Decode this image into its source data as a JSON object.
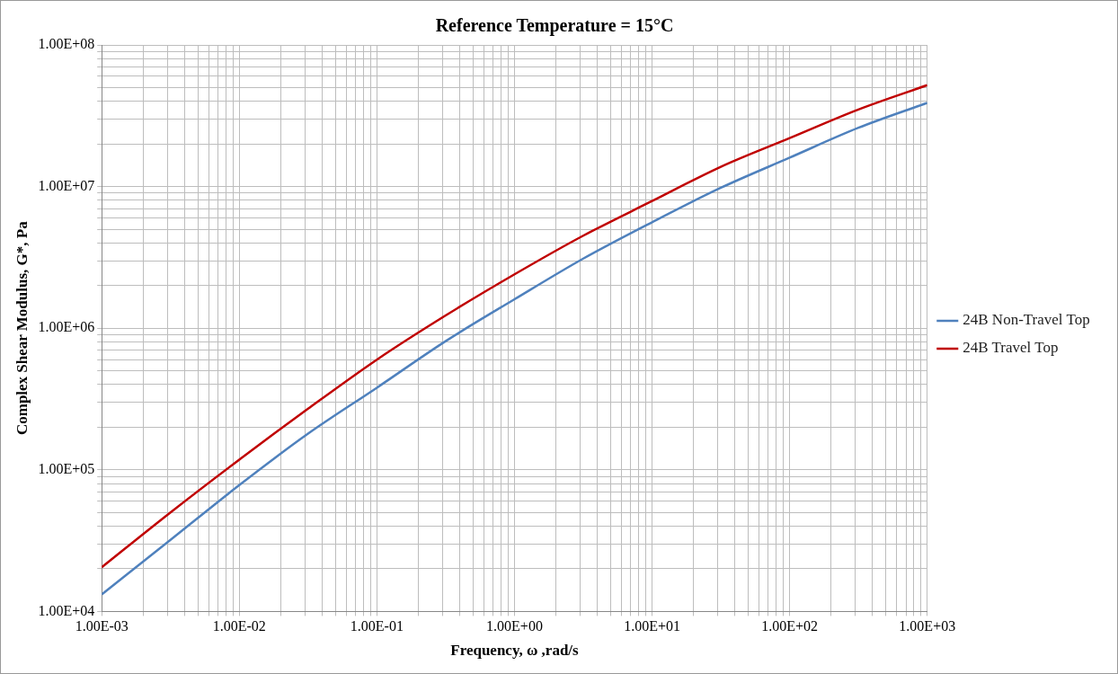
{
  "chart_data": {
    "type": "line",
    "title": "Reference Temperature = 15°C",
    "xlabel": "Frequency, ω ,rad/s",
    "ylabel": "Complex Shear Modulus, G*, Pa",
    "log": "xy",
    "grid": true,
    "legend": "right",
    "marker": "none",
    "line_style": "solid",
    "xlim": [
      0.001,
      1000
    ],
    "ylim": [
      10000,
      100000000
    ],
    "x": [
      0.001,
      0.00316,
      0.01,
      0.0316,
      0.1,
      0.316,
      1,
      3.16,
      10,
      31.6,
      100,
      316,
      1000
    ],
    "series": [
      {
        "name": "24B Non-Travel Top",
        "color": "#4f81bd",
        "values": [
          13200,
          32000,
          78000,
          180000,
          380000,
          810000,
          1600000,
          3100000,
          5600000,
          9800000,
          16000000,
          26000000,
          39000000
        ]
      },
      {
        "name": "24B Travel Top",
        "color": "#c00000",
        "values": [
          20500,
          50000,
          118000,
          270000,
          600000,
          1230000,
          2400000,
          4500000,
          7900000,
          13800000,
          22000000,
          35000000,
          52000000
        ]
      }
    ],
    "xticks": [
      {
        "value": 0.001,
        "label": "1.00E-03"
      },
      {
        "value": 0.002,
        "label": null
      },
      {
        "value": 0.003,
        "label": null
      },
      {
        "value": 0.004,
        "label": null
      },
      {
        "value": 0.005,
        "label": null
      },
      {
        "value": 0.006,
        "label": null
      },
      {
        "value": 0.007,
        "label": null
      },
      {
        "value": 0.008,
        "label": null
      },
      {
        "value": 0.009,
        "label": null
      },
      {
        "value": 0.01,
        "label": "1.00E-02"
      },
      {
        "value": 0.02,
        "label": null
      },
      {
        "value": 0.03,
        "label": null
      },
      {
        "value": 0.04,
        "label": null
      },
      {
        "value": 0.05,
        "label": null
      },
      {
        "value": 0.06,
        "label": null
      },
      {
        "value": 0.07,
        "label": null
      },
      {
        "value": 0.08,
        "label": null
      },
      {
        "value": 0.09,
        "label": null
      },
      {
        "value": 0.1,
        "label": "1.00E-01"
      },
      {
        "value": 0.2,
        "label": null
      },
      {
        "value": 0.3,
        "label": null
      },
      {
        "value": 0.4,
        "label": null
      },
      {
        "value": 0.5,
        "label": null
      },
      {
        "value": 0.6,
        "label": null
      },
      {
        "value": 0.7,
        "label": null
      },
      {
        "value": 0.8,
        "label": null
      },
      {
        "value": 0.9,
        "label": null
      },
      {
        "value": 1,
        "label": "1.00E+00"
      },
      {
        "value": 2,
        "label": null
      },
      {
        "value": 3,
        "label": null
      },
      {
        "value": 4,
        "label": null
      },
      {
        "value": 5,
        "label": null
      },
      {
        "value": 6,
        "label": null
      },
      {
        "value": 7,
        "label": null
      },
      {
        "value": 8,
        "label": null
      },
      {
        "value": 9,
        "label": null
      },
      {
        "value": 10,
        "label": "1.00E+01"
      },
      {
        "value": 20,
        "label": null
      },
      {
        "value": 30,
        "label": null
      },
      {
        "value": 40,
        "label": null
      },
      {
        "value": 50,
        "label": null
      },
      {
        "value": 60,
        "label": null
      },
      {
        "value": 70,
        "label": null
      },
      {
        "value": 80,
        "label": null
      },
      {
        "value": 90,
        "label": null
      },
      {
        "value": 100,
        "label": "1.00E+02"
      },
      {
        "value": 200,
        "label": null
      },
      {
        "value": 300,
        "label": null
      },
      {
        "value": 400,
        "label": null
      },
      {
        "value": 500,
        "label": null
      },
      {
        "value": 600,
        "label": null
      },
      {
        "value": 700,
        "label": null
      },
      {
        "value": 800,
        "label": null
      },
      {
        "value": 900,
        "label": null
      },
      {
        "value": 1000,
        "label": "1.00E+03"
      }
    ],
    "yticks": [
      {
        "value": 10000,
        "label": "1.00E+04"
      },
      {
        "value": 20000,
        "label": null
      },
      {
        "value": 30000,
        "label": null
      },
      {
        "value": 40000,
        "label": null
      },
      {
        "value": 50000,
        "label": null
      },
      {
        "value": 60000,
        "label": null
      },
      {
        "value": 70000,
        "label": null
      },
      {
        "value": 80000,
        "label": null
      },
      {
        "value": 90000,
        "label": null
      },
      {
        "value": 100000,
        "label": "1.00E+05"
      },
      {
        "value": 200000,
        "label": null
      },
      {
        "value": 300000,
        "label": null
      },
      {
        "value": 400000,
        "label": null
      },
      {
        "value": 500000,
        "label": null
      },
      {
        "value": 600000,
        "label": null
      },
      {
        "value": 700000,
        "label": null
      },
      {
        "value": 800000,
        "label": null
      },
      {
        "value": 900000,
        "label": null
      },
      {
        "value": 1000000,
        "label": "1.00E+06"
      },
      {
        "value": 2000000,
        "label": null
      },
      {
        "value": 3000000,
        "label": null
      },
      {
        "value": 4000000,
        "label": null
      },
      {
        "value": 5000000,
        "label": null
      },
      {
        "value": 6000000,
        "label": null
      },
      {
        "value": 7000000,
        "label": null
      },
      {
        "value": 8000000,
        "label": null
      },
      {
        "value": 9000000,
        "label": null
      },
      {
        "value": 10000000,
        "label": "1.00E+07"
      },
      {
        "value": 20000000,
        "label": null
      },
      {
        "value": 30000000,
        "label": null
      },
      {
        "value": 40000000,
        "label": null
      },
      {
        "value": 50000000,
        "label": null
      },
      {
        "value": 60000000,
        "label": null
      },
      {
        "value": 70000000,
        "label": null
      },
      {
        "value": 80000000,
        "label": null
      },
      {
        "value": 90000000,
        "label": null
      },
      {
        "value": 100000000,
        "label": "1.00E+08"
      }
    ]
  }
}
